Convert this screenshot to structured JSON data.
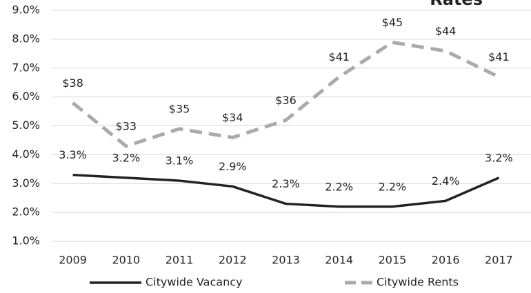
{
  "chart_data": {
    "type": "line",
    "title": "Rates",
    "categories": [
      "2009",
      "2010",
      "2011",
      "2012",
      "2013",
      "2014",
      "2015",
      "2016",
      "2017"
    ],
    "series": [
      {
        "name": "Citywide Vacancy",
        "color": "#222222",
        "values": [
          3.3,
          3.2,
          3.1,
          2.9,
          2.3,
          2.2,
          2.2,
          2.4,
          3.2
        ],
        "value_labels": [
          "3.3%",
          "3.2%",
          "3.1%",
          "2.9%",
          "2.3%",
          "2.2%",
          "2.2%",
          "2.4%",
          "3.2%"
        ]
      },
      {
        "name": "Citywide Rents",
        "color": "#aaaaaa",
        "axis": "y2",
        "dashed": true,
        "values": [
          38,
          33,
          35,
          34,
          36,
          41,
          45,
          44,
          41
        ],
        "value_labels": [
          "$38",
          "$33",
          "$35",
          "$34",
          "$36",
          "$41",
          "$45",
          "$44",
          "$41"
        ]
      }
    ],
    "ylim": [
      1,
      9
    ],
    "yticks": [
      {
        "value": 1,
        "label": "1.0%"
      },
      {
        "value": 2,
        "label": "2.0%"
      },
      {
        "value": 3,
        "label": "3.0%"
      },
      {
        "value": 4,
        "label": "4.0%"
      },
      {
        "value": 5,
        "label": "5.0%"
      },
      {
        "value": 6,
        "label": "6.0%"
      },
      {
        "value": 7,
        "label": "7.0%"
      },
      {
        "value": 8,
        "label": "8.0%"
      },
      {
        "value": 9,
        "label": "9.0%"
      }
    ],
    "y2lim": [
      22,
      48.7
    ],
    "grid": true,
    "legend": "bottom"
  }
}
